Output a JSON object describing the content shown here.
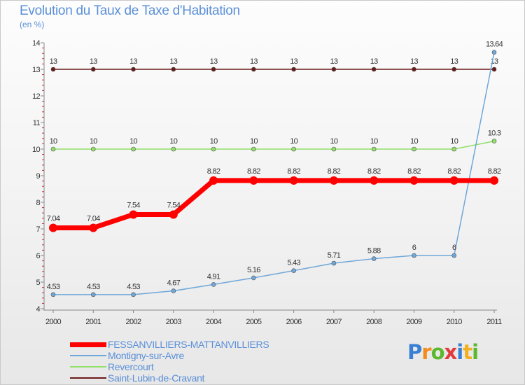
{
  "chart_data": {
    "type": "line",
    "title": "Evolution du Taux de Taxe d'Habitation",
    "ylabel": "(en %)",
    "xlabel": "",
    "ylim": [
      4,
      14
    ],
    "yticks": [
      "4",
      "5",
      "6",
      "7",
      "8",
      "9",
      "10",
      "11",
      "12",
      "13",
      "14"
    ],
    "categories": [
      "2000",
      "2001",
      "2002",
      "2003",
      "2004",
      "2005",
      "2006",
      "2007",
      "2008",
      "2009",
      "2010",
      "2011"
    ],
    "series": [
      {
        "name": "Saint-Lubin-de-Cravant",
        "color": "#6b1a1a",
        "values": [
          13,
          13,
          13,
          13,
          13,
          13,
          13,
          13,
          13,
          13,
          13,
          13
        ],
        "labels": [
          "13",
          "13",
          "13",
          "13",
          "13",
          "13",
          "13",
          "13",
          "13",
          "13",
          "13",
          "13"
        ],
        "width": 1.5,
        "marker": 3
      },
      {
        "name": "Revercourt",
        "color": "#90e06a",
        "values": [
          10,
          10,
          10,
          10,
          10,
          10,
          10,
          10,
          10,
          10,
          10,
          10.3
        ],
        "labels": [
          "10",
          "10",
          "10",
          "10",
          "10",
          "10",
          "10",
          "10",
          "10",
          "10",
          "10",
          "10.3"
        ],
        "width": 1.5,
        "marker": 3
      },
      {
        "name": "Montigny-sur-Avre",
        "color": "#6fa7d8",
        "values": [
          4.53,
          4.53,
          4.53,
          4.67,
          4.91,
          5.16,
          5.43,
          5.71,
          5.88,
          6,
          6,
          13.64
        ],
        "labels": [
          "4.53",
          "4.53",
          "4.53",
          "4.67",
          "4.91",
          "5.16",
          "5.43",
          "5.71",
          "5.88",
          "6",
          "6",
          "13.64"
        ],
        "width": 1.5,
        "marker": 3
      },
      {
        "name": "FESSANVILLIERS-MATTANVILLIERS",
        "color": "#ff0000",
        "values": [
          7.04,
          7.04,
          7.54,
          7.54,
          8.82,
          8.82,
          8.82,
          8.82,
          8.82,
          8.82,
          8.82,
          8.82
        ],
        "labels": [
          "7.04",
          "7.04",
          "7.54",
          "7.54",
          "8.82",
          "8.82",
          "8.82",
          "8.82",
          "8.82",
          "8.82",
          "8.82",
          "8.82"
        ],
        "width": 7,
        "marker": 6
      }
    ]
  },
  "legend": [
    {
      "name": "FESSANVILLIERS-MATTANVILLIERS",
      "color": "#ff0000",
      "thickness": 7
    },
    {
      "name": "Montigny-sur-Avre",
      "color": "#6fa7d8",
      "thickness": 2
    },
    {
      "name": "Revercourt",
      "color": "#90e06a",
      "thickness": 2
    },
    {
      "name": "Saint-Lubin-de-Cravant",
      "color": "#6b1a1a",
      "thickness": 2
    }
  ],
  "brand": {
    "letters": [
      "P",
      "r",
      "o",
      "x",
      "i",
      "t",
      "i"
    ],
    "colors": [
      "#3a7fd5",
      "#f28c1e",
      "#5cb82e",
      "#e23b3b",
      "#3a7fd5",
      "#f2b01e",
      "#5cb82e"
    ]
  }
}
